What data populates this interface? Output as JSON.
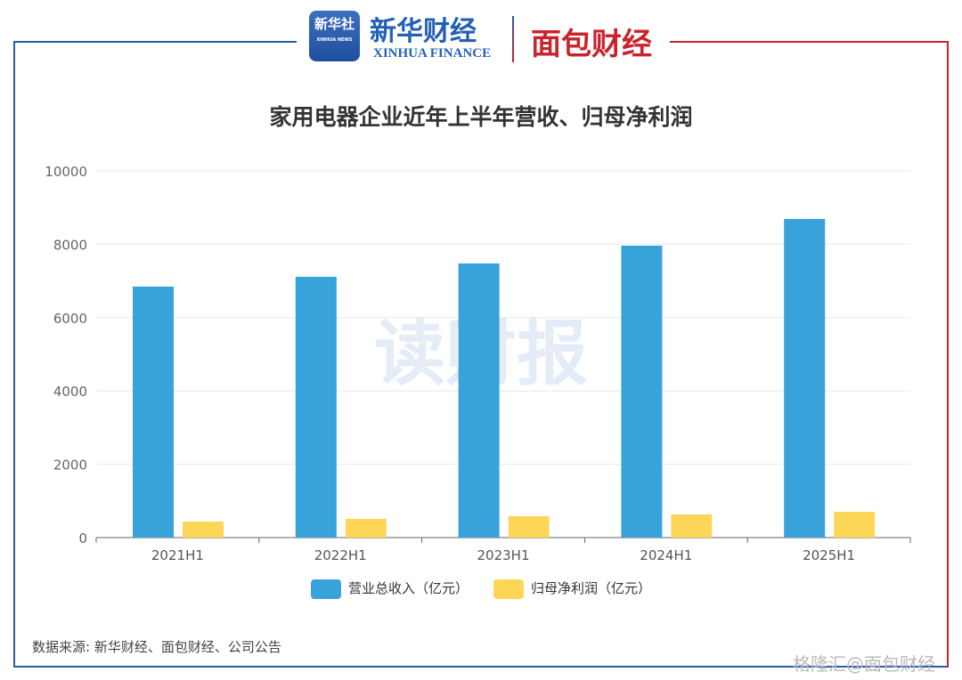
{
  "header": {
    "logo_xinhua": "新华社",
    "logo_xinhua_en": "XINHUA NEWS",
    "logo_finance": "新华财经",
    "logo_finance_en": "XINHUA FINANCE",
    "logo_mianbao": "面包财经"
  },
  "chart_data": {
    "type": "bar",
    "title": "家用电器企业近年上半年营收、归母净利润",
    "categories": [
      "2021H1",
      "2022H1",
      "2023H1",
      "2024H1",
      "2025H1"
    ],
    "series": [
      {
        "name": "营业总收入（亿元）",
        "color": "#38a2db",
        "values": [
          6845,
          7112,
          7476,
          7961,
          8689
        ]
      },
      {
        "name": "归母净利润（亿元）",
        "color": "#fed657",
        "values": [
          437,
          510,
          583,
          631,
          704
        ]
      }
    ],
    "ylim": [
      0,
      10000
    ],
    "yticks": [
      "0",
      "2000",
      "4000",
      "6000",
      "8000",
      "10000"
    ],
    "grid": true,
    "legend": "bottom",
    "watermark": "读财报"
  },
  "source": "数据来源: 新华财经、面包财经、公司公告",
  "corner_watermark": "格隆汇@面包财经"
}
